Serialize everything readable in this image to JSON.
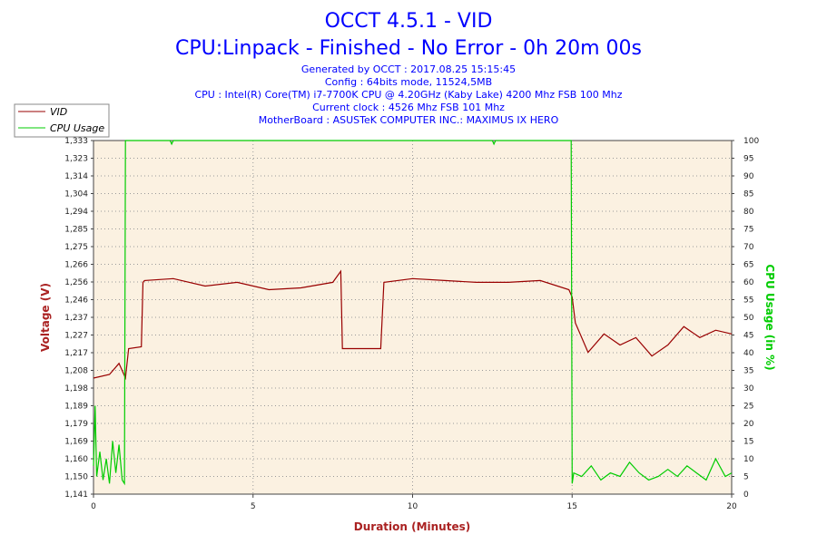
{
  "chart_data": {
    "type": "line",
    "title": "OCCT 4.5.1 - VID",
    "subtitle": "CPU:Linpack - Finished - No Error - 0h 20m 00s",
    "info_lines": [
      "Generated by OCCT : 2017.08.25 15:15:45",
      "Config : 64bits mode, 11524,5MB",
      "CPU : Intel(R) Core(TM) i7-7700K CPU @ 4.20GHz (Kaby Lake) 4200 Mhz FSB 100 Mhz",
      "Current clock : 4526 Mhz FSB 101 Mhz",
      "MotherBoard : ASUSTeK COMPUTER INC.: MAXIMUS IX HERO"
    ],
    "xlabel": "Duration (Minutes)",
    "ylabel": "Voltage (V)",
    "y2label": "CPU Usage (in %)",
    "xlim": [
      0,
      20
    ],
    "x_ticks": [
      "0",
      "5",
      "10",
      "15",
      "20"
    ],
    "ylim": [
      1.141,
      1.333
    ],
    "y_ticks": [
      "1,141",
      "1,150",
      "1,160",
      "1,169",
      "1,179",
      "1,189",
      "1,198",
      "1,208",
      "1,217",
      "1,227",
      "1,237",
      "1,246",
      "1,256",
      "1,266",
      "1,275",
      "1,285",
      "1,294",
      "1,304",
      "1,314",
      "1,323",
      "1,333"
    ],
    "y2lim": [
      0,
      100
    ],
    "y2_ticks": [
      "0",
      "5",
      "10",
      "15",
      "20",
      "25",
      "30",
      "35",
      "40",
      "45",
      "50",
      "55",
      "60",
      "65",
      "70",
      "75",
      "80",
      "85",
      "90",
      "95",
      "100"
    ],
    "grid": true,
    "legend_position": "top-left",
    "series": [
      {
        "name": "VID",
        "axis": "left",
        "color": "#990000",
        "x": [
          0,
          0.5,
          0.8,
          1.0,
          1.1,
          1.5,
          1.55,
          1.6,
          2.5,
          3.5,
          4.5,
          5.5,
          6.5,
          7.5,
          7.75,
          7.8,
          8.5,
          9.0,
          9.1,
          10.0,
          11.0,
          12.0,
          13.0,
          14.0,
          14.9,
          15.0,
          15.1,
          15.5,
          16.0,
          16.5,
          17.0,
          17.5,
          18.0,
          18.5,
          19.0,
          19.5,
          20.0
        ],
        "values": [
          1.204,
          1.206,
          1.212,
          1.204,
          1.22,
          1.221,
          1.256,
          1.257,
          1.258,
          1.254,
          1.256,
          1.252,
          1.253,
          1.256,
          1.262,
          1.22,
          1.22,
          1.22,
          1.256,
          1.258,
          1.257,
          1.256,
          1.256,
          1.257,
          1.252,
          1.248,
          1.234,
          1.218,
          1.228,
          1.222,
          1.226,
          1.216,
          1.222,
          1.232,
          1.226,
          1.23,
          1.228
        ]
      },
      {
        "name": "CPU Usage",
        "axis": "right",
        "color": "#00cc00",
        "x": [
          0,
          0.05,
          0.1,
          0.2,
          0.3,
          0.4,
          0.5,
          0.6,
          0.7,
          0.8,
          0.9,
          0.97,
          1.0,
          2.4,
          2.45,
          2.5,
          12.5,
          12.55,
          12.6,
          14.97,
          15.0,
          15.05,
          15.3,
          15.6,
          15.9,
          16.2,
          16.5,
          16.8,
          17.1,
          17.4,
          17.7,
          18.0,
          18.3,
          18.6,
          18.9,
          19.2,
          19.5,
          19.8,
          20.0
        ],
        "values": [
          8,
          25,
          5,
          12,
          4,
          10,
          3,
          15,
          6,
          14,
          4,
          3,
          100,
          100,
          99,
          100,
          100,
          99,
          100,
          100,
          3,
          6,
          5,
          8,
          4,
          6,
          5,
          9,
          6,
          4,
          5,
          7,
          5,
          8,
          6,
          4,
          10,
          5,
          6
        ]
      }
    ]
  }
}
